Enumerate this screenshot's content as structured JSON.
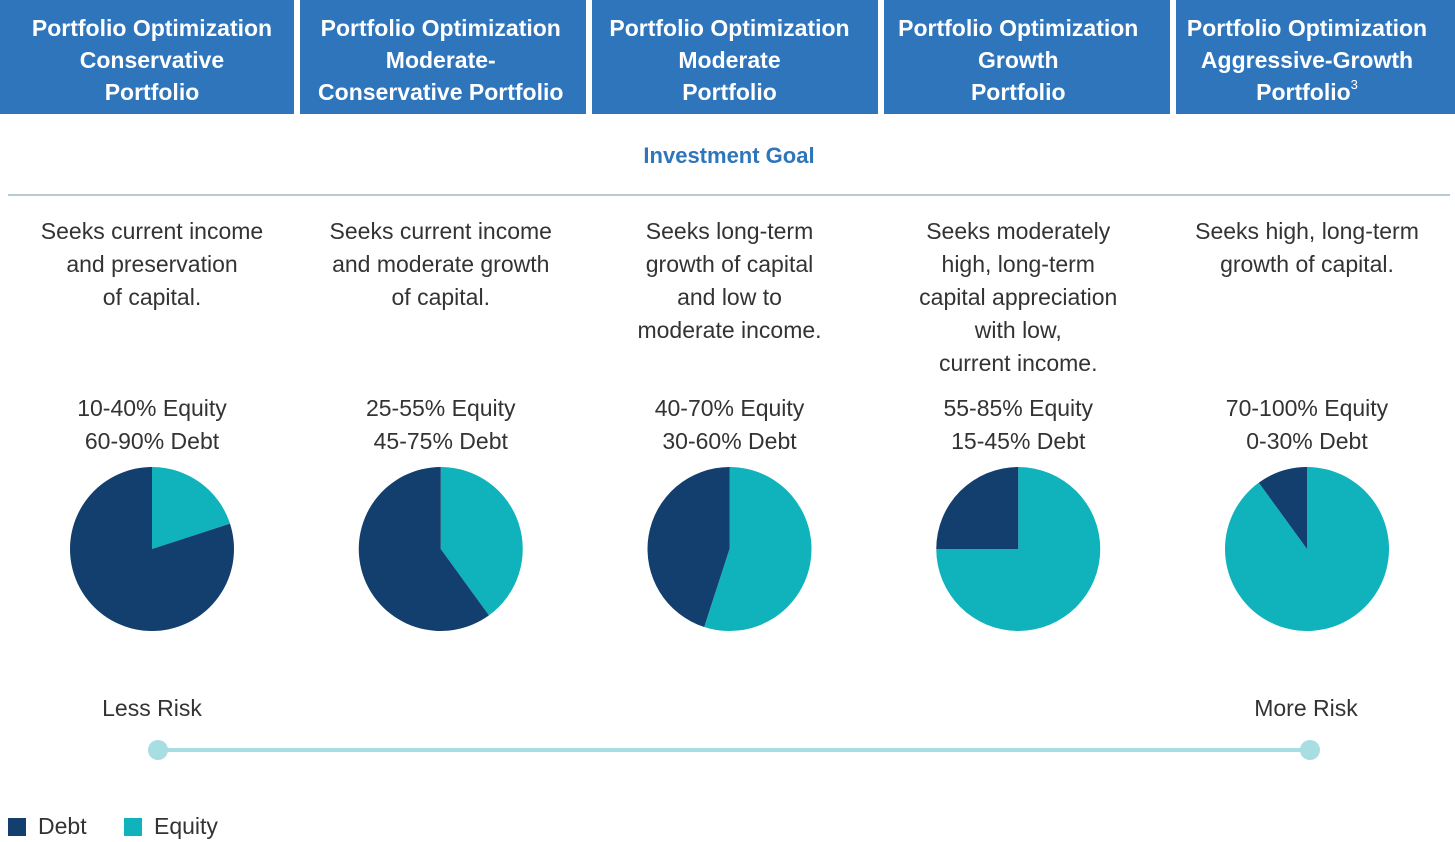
{
  "portfolios": [
    {
      "title": [
        "Portfolio Optimization",
        "Conservative",
        "Portfolio"
      ],
      "goal": [
        "Seeks current income",
        "and preservation",
        "of capital."
      ],
      "allocation": [
        "10-40% Equity",
        "60-90% Debt"
      ],
      "pie": {
        "type": "pie",
        "categories": [
          "Equity",
          "Debt"
        ],
        "values": [
          20,
          80
        ]
      }
    },
    {
      "title": [
        "Portfolio Optimization",
        "Moderate-",
        "Conservative Portfolio"
      ],
      "goal": [
        "Seeks current income",
        "and moderate growth",
        "of capital."
      ],
      "allocation": [
        "25-55% Equity",
        "45-75% Debt"
      ],
      "pie": {
        "type": "pie",
        "categories": [
          "Equity",
          "Debt"
        ],
        "values": [
          40,
          60
        ]
      }
    },
    {
      "title": [
        "Portfolio Optimization",
        "Moderate",
        "Portfolio"
      ],
      "goal": [
        "Seeks long-term",
        "growth of capital",
        "and low to",
        "moderate income."
      ],
      "allocation": [
        "40-70% Equity",
        "30-60% Debt"
      ],
      "pie": {
        "type": "pie",
        "categories": [
          "Equity",
          "Debt"
        ],
        "values": [
          55,
          45
        ]
      }
    },
    {
      "title": [
        "Portfolio Optimization",
        "Growth",
        "Portfolio"
      ],
      "goal": [
        "Seeks moderately",
        "high, long-term",
        "capital appreciation",
        "with low,",
        "current income."
      ],
      "allocation": [
        "55-85% Equity",
        "15-45% Debt"
      ],
      "pie": {
        "type": "pie",
        "categories": [
          "Equity",
          "Debt"
        ],
        "values": [
          75,
          25
        ]
      }
    },
    {
      "title": [
        "Portfolio Optimization",
        "Aggressive-Growth",
        "Portfolio"
      ],
      "note_ref": "3",
      "goal": [
        "Seeks high, long-term",
        "growth of capital."
      ],
      "allocation": [
        "70-100% Equity",
        "0-30% Debt"
      ],
      "pie": {
        "type": "pie",
        "categories": [
          "Equity",
          "Debt"
        ],
        "values": [
          90,
          10
        ]
      }
    }
  ],
  "section_label": "Investment Goal",
  "risk": {
    "low": "Less Risk",
    "high": "More Risk"
  },
  "legend": [
    {
      "name": "Debt",
      "color": "#123f6e"
    },
    {
      "name": "Equity",
      "color": "#10b2bb"
    }
  ]
}
